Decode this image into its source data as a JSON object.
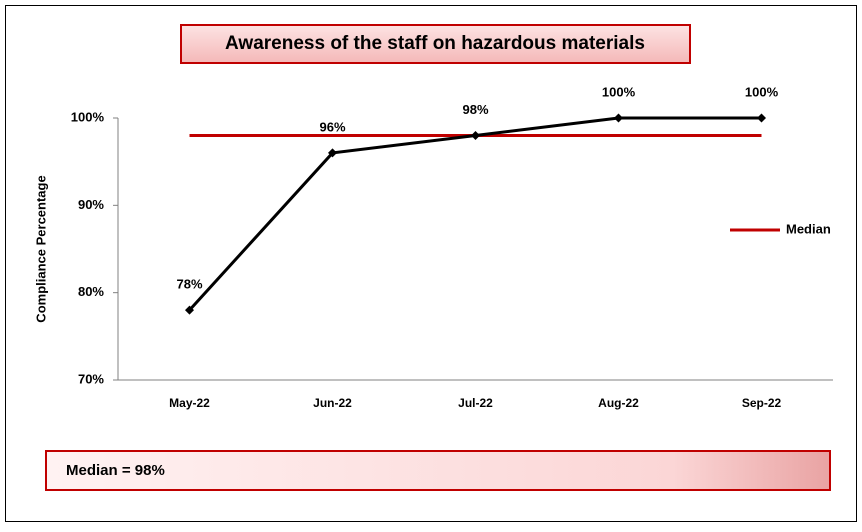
{
  "chart_data": {
    "type": "line",
    "title": "Awareness of the staff on hazardous materials",
    "ylabel": "Compliance Percentage",
    "categories": [
      "May-22",
      "Jun-22",
      "Jul-22",
      "Aug-22",
      "Sep-22"
    ],
    "series": [
      {
        "color": "#000000",
        "values": [
          78,
          96,
          98,
          100,
          100
        ],
        "value_labels": [
          "78%",
          "96%",
          "98%",
          "100%",
          "100%"
        ],
        "markers": true
      },
      {
        "name": "Median",
        "color": "#c00000",
        "values": [
          98,
          98,
          98,
          98,
          98
        ]
      }
    ],
    "ylim": [
      70,
      100
    ],
    "yticks": [
      {
        "value": 70,
        "label": "70%"
      },
      {
        "value": 80,
        "label": "80%"
      },
      {
        "value": 90,
        "label": "90%"
      },
      {
        "value": 100,
        "label": "100%"
      }
    ],
    "legend": "right",
    "annotation": "Median = 98%"
  }
}
